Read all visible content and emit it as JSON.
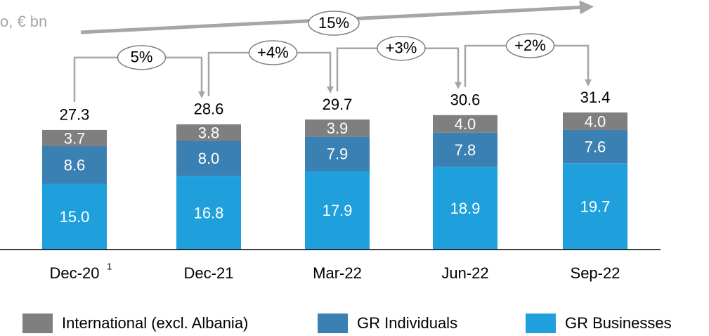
{
  "chart_data": {
    "type": "stacked-bar",
    "subtitle": "o, € bn",
    "categories": [
      "Dec-20",
      "Dec-21",
      "Mar-22",
      "Jun-22",
      "Sep-22"
    ],
    "category_notes": [
      "1",
      null,
      null,
      null,
      null
    ],
    "series": [
      {
        "name": "GR Businesses",
        "color": "#1fa0dc",
        "values": [
          15.0,
          16.8,
          17.9,
          18.9,
          19.7
        ],
        "value_labels": [
          "15.0",
          "16.8",
          "17.9",
          "18.9",
          "19.7"
        ]
      },
      {
        "name": "GR Individuals",
        "color": "#3a80b2",
        "values": [
          8.6,
          8.0,
          7.9,
          7.8,
          7.6
        ],
        "value_labels": [
          "8.6",
          "8.0",
          "7.9",
          "7.8",
          "7.6"
        ]
      },
      {
        "name": "International (excl. Albania)",
        "color": "#7f7f7f",
        "values": [
          3.7,
          3.8,
          3.9,
          4.0,
          4.0
        ],
        "value_labels": [
          "3.7",
          "3.8",
          "3.9",
          "4.0",
          "4.0"
        ]
      }
    ],
    "totals": [
      27.3,
      28.6,
      29.7,
      30.6,
      31.4
    ],
    "growth_labels": [
      "5%",
      "+4%",
      "+3%",
      "+2%"
    ],
    "overall_growth": "15%"
  }
}
